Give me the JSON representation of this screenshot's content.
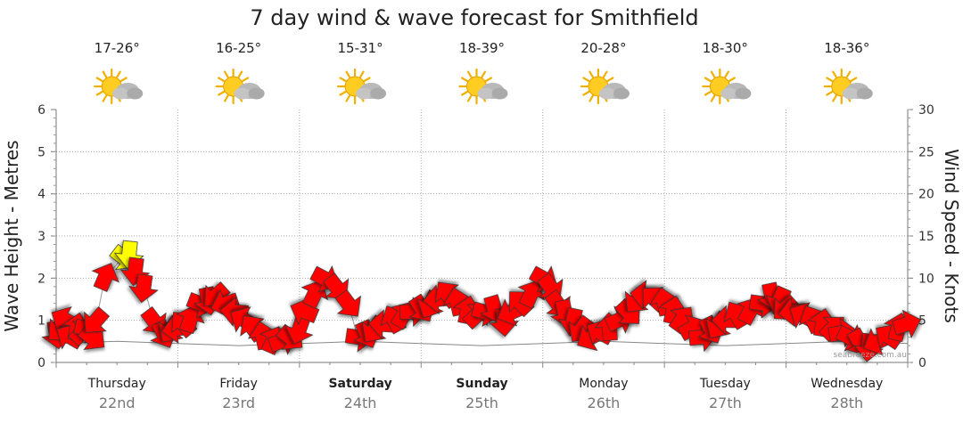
{
  "chart_data": {
    "type": "line",
    "title": "7 day wind & wave forecast for Smithfield",
    "y_left": {
      "label": "Wave Height - Metres",
      "range": [
        0,
        6
      ],
      "ticks": [
        "0",
        "1",
        "2",
        "3",
        "4",
        "5",
        "6"
      ]
    },
    "y_right": {
      "label": "Wind Speed - Knots",
      "range": [
        0,
        30
      ],
      "ticks": [
        "0",
        "5",
        "10",
        "15",
        "20",
        "25",
        "30"
      ]
    },
    "grid": true,
    "days": [
      {
        "name": "Thursday",
        "date": "22nd",
        "temp": "17-26°",
        "bold": false
      },
      {
        "name": "Friday",
        "date": "23rd",
        "temp": "16-25°",
        "bold": false
      },
      {
        "name": "Saturday",
        "date": "24th",
        "temp": "15-31°",
        "bold": true
      },
      {
        "name": "Sunday",
        "date": "25th",
        "temp": "18-39°",
        "bold": true
      },
      {
        "name": "Monday",
        "date": "26th",
        "temp": "20-28°",
        "bold": false
      },
      {
        "name": "Tuesday",
        "date": "27th",
        "temp": "18-30°",
        "bold": false
      },
      {
        "name": "Wednesday",
        "date": "28th",
        "temp": "18-36°",
        "bold": false
      }
    ],
    "weather_icon": "partly-cloudy-icon",
    "wind_colors": {
      "normal": "#ff0000",
      "strong": "#ffff00"
    },
    "wind_series": {
      "name": "Wind Speed",
      "x_day": [
        0.0,
        0.04,
        0.08,
        0.12,
        0.17,
        0.21,
        0.25,
        0.29,
        0.33,
        0.4,
        0.55,
        0.6,
        0.65,
        0.72,
        0.8,
        0.88,
        0.95,
        1.0,
        1.05,
        1.1,
        1.18,
        1.25,
        1.32,
        1.4,
        1.48,
        1.55,
        1.62,
        1.7,
        1.78,
        1.85,
        1.92,
        2.0,
        2.05,
        2.12,
        2.2,
        2.3,
        2.4,
        2.48,
        2.55,
        2.62,
        2.7,
        2.78,
        2.85,
        2.92,
        3.0,
        3.08,
        3.15,
        3.22,
        3.3,
        3.38,
        3.45,
        3.52,
        3.6,
        3.68,
        3.75,
        3.82,
        3.9,
        4.0,
        4.06,
        4.12,
        4.18,
        4.25,
        4.32,
        4.4,
        4.48,
        4.55,
        4.62,
        4.7,
        4.78,
        4.85,
        4.92,
        5.0,
        5.07,
        5.14,
        5.22,
        5.3,
        5.38,
        5.45,
        5.52,
        5.6,
        5.7,
        5.8,
        5.88,
        5.95,
        6.0,
        6.07,
        6.15,
        6.22,
        6.3,
        6.38,
        6.45,
        6.52,
        6.6,
        6.68,
        6.76,
        6.85,
        6.92,
        6.98
      ],
      "knots": [
        3.5,
        4,
        5,
        3,
        4,
        3.5,
        4,
        3,
        5,
        10,
        12.5,
        13,
        11,
        9,
        5,
        3.5,
        4,
        4,
        4.5,
        5,
        7,
        7.5,
        8,
        7,
        6,
        5,
        4,
        3,
        2.5,
        2.5,
        3,
        4,
        6,
        8,
        10,
        9,
        7,
        3,
        3.5,
        4,
        4.5,
        5,
        5.5,
        6,
        6.5,
        7,
        7.5,
        8,
        7,
        6,
        5.5,
        6,
        6.5,
        5,
        6,
        7,
        8,
        10,
        9,
        7,
        6,
        5,
        4,
        3,
        3.5,
        4,
        5,
        6,
        7.5,
        8,
        7.5,
        7,
        6,
        5,
        4,
        3,
        4,
        4.5,
        5,
        5.5,
        6,
        7,
        8,
        7.5,
        6.5,
        6,
        5.5,
        5,
        4.5,
        4,
        3.5,
        3,
        2.5,
        2,
        2.5,
        3,
        4,
        4.5
      ]
    },
    "wave_series": {
      "name": "Wave Height",
      "x_day": [
        0.0,
        0.5,
        1.0,
        1.5,
        2.0,
        2.5,
        3.0,
        3.5,
        4.0,
        4.5,
        5.0,
        5.5,
        6.0,
        6.5,
        7.0
      ],
      "metres": [
        0.45,
        0.5,
        0.45,
        0.4,
        0.45,
        0.5,
        0.45,
        0.4,
        0.45,
        0.5,
        0.45,
        0.4,
        0.45,
        0.5,
        0.45
      ]
    }
  },
  "watermark": "seabreeze.com.au"
}
